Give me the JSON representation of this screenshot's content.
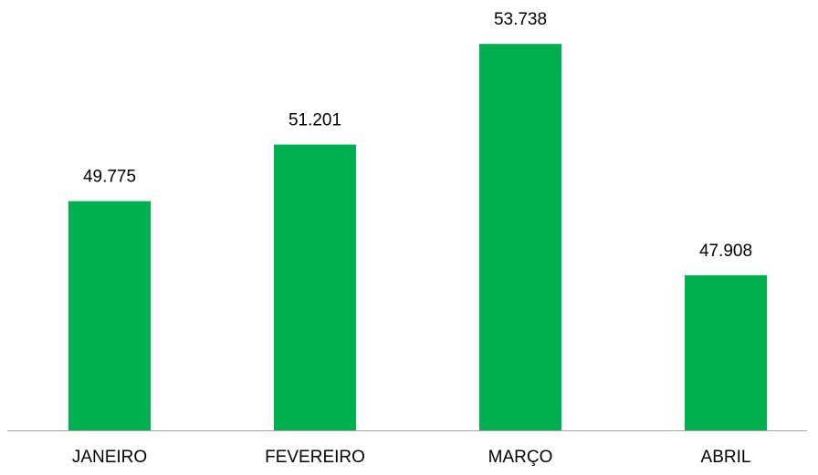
{
  "chart_data": {
    "type": "bar",
    "categories": [
      "JANEIRO",
      "FEVEREIRO",
      "MARÇO",
      "ABRIL"
    ],
    "values": [
      49775,
      51201,
      53738,
      47908
    ],
    "value_labels": [
      "49.775",
      "51.201",
      "53.738",
      "47.908"
    ],
    "color": "#00b050",
    "ylim": [
      44000,
      54500
    ]
  }
}
